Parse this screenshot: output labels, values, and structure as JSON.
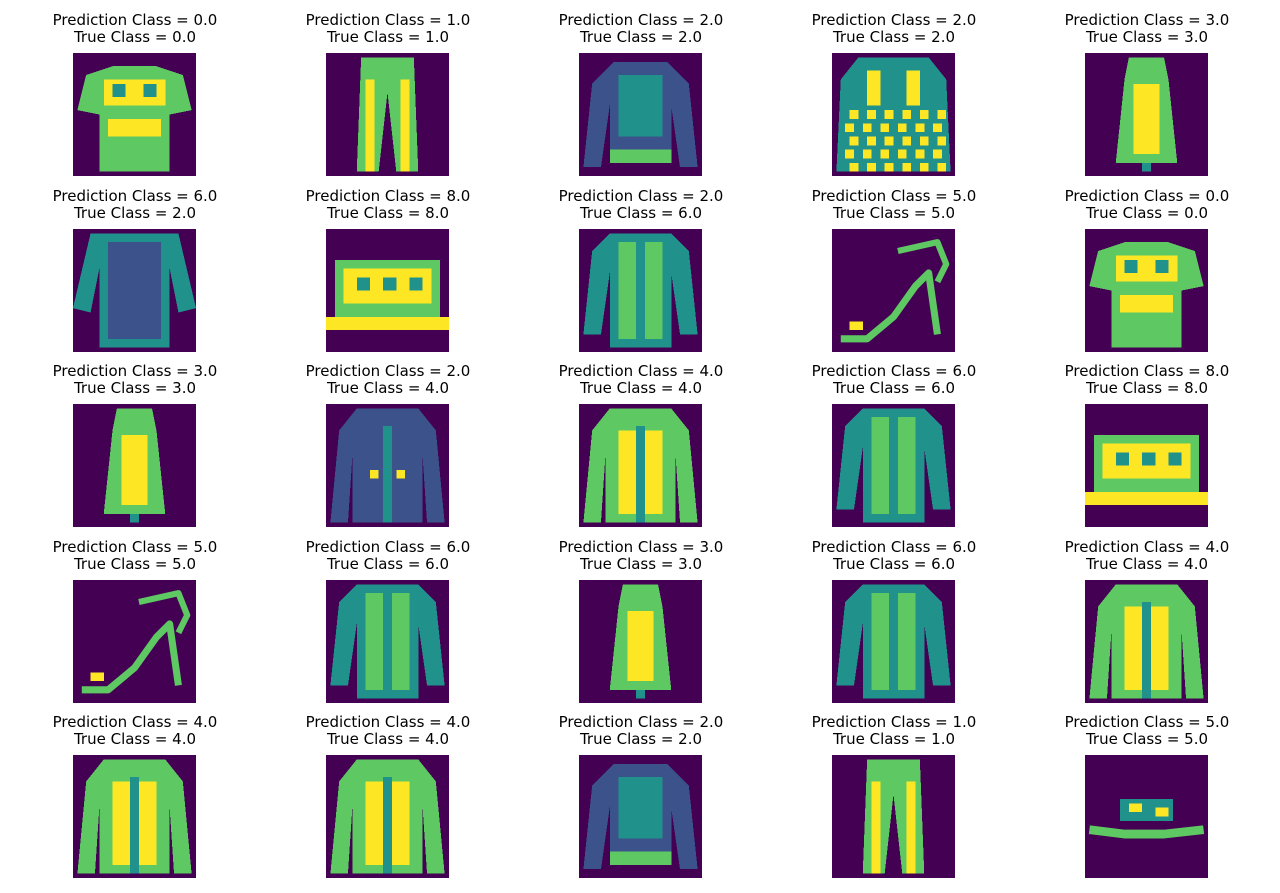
{
  "palette": {
    "background": "#440154",
    "low": "#3b528b",
    "mid": "#21918c",
    "high": "#5ec962",
    "peak": "#fde725"
  },
  "panels": [
    {
      "prediction": "Prediction Class = 0.0",
      "truth": "True Class = 0.0",
      "item": "tshirt"
    },
    {
      "prediction": "Prediction Class = 1.0",
      "truth": "True Class = 1.0",
      "item": "trouser"
    },
    {
      "prediction": "Prediction Class = 2.0",
      "truth": "True Class = 2.0",
      "item": "pullover"
    },
    {
      "prediction": "Prediction Class = 2.0",
      "truth": "True Class = 2.0",
      "item": "pullover-pattern"
    },
    {
      "prediction": "Prediction Class = 3.0",
      "truth": "True Class = 3.0",
      "item": "dress"
    },
    {
      "prediction": "Prediction Class = 6.0",
      "truth": "True Class = 2.0",
      "item": "top-wide"
    },
    {
      "prediction": "Prediction Class = 8.0",
      "truth": "True Class = 8.0",
      "item": "bag"
    },
    {
      "prediction": "Prediction Class = 2.0",
      "truth": "True Class = 6.0",
      "item": "shirt"
    },
    {
      "prediction": "Prediction Class = 5.0",
      "truth": "True Class = 5.0",
      "item": "sandal"
    },
    {
      "prediction": "Prediction Class = 0.0",
      "truth": "True Class = 0.0",
      "item": "tshirt"
    },
    {
      "prediction": "Prediction Class = 3.0",
      "truth": "True Class = 3.0",
      "item": "dress"
    },
    {
      "prediction": "Prediction Class = 2.0",
      "truth": "True Class = 4.0",
      "item": "coat-dark"
    },
    {
      "prediction": "Prediction Class = 4.0",
      "truth": "True Class = 4.0",
      "item": "coat"
    },
    {
      "prediction": "Prediction Class = 6.0",
      "truth": "True Class = 6.0",
      "item": "shirt"
    },
    {
      "prediction": "Prediction Class = 8.0",
      "truth": "True Class = 8.0",
      "item": "bag"
    },
    {
      "prediction": "Prediction Class = 5.0",
      "truth": "True Class = 5.0",
      "item": "sandal"
    },
    {
      "prediction": "Prediction Class = 6.0",
      "truth": "True Class = 6.0",
      "item": "shirt"
    },
    {
      "prediction": "Prediction Class = 3.0",
      "truth": "True Class = 3.0",
      "item": "dress"
    },
    {
      "prediction": "Prediction Class = 6.0",
      "truth": "True Class = 6.0",
      "item": "shirt"
    },
    {
      "prediction": "Prediction Class = 4.0",
      "truth": "True Class = 4.0",
      "item": "coat"
    },
    {
      "prediction": "Prediction Class = 4.0",
      "truth": "True Class = 4.0",
      "item": "coat"
    },
    {
      "prediction": "Prediction Class = 4.0",
      "truth": "True Class = 4.0",
      "item": "coat"
    },
    {
      "prediction": "Prediction Class = 2.0",
      "truth": "True Class = 2.0",
      "item": "pullover"
    },
    {
      "prediction": "Prediction Class = 1.0",
      "truth": "True Class = 1.0",
      "item": "trouser"
    },
    {
      "prediction": "Prediction Class = 5.0",
      "truth": "True Class = 5.0",
      "item": "sandal-low"
    }
  ]
}
